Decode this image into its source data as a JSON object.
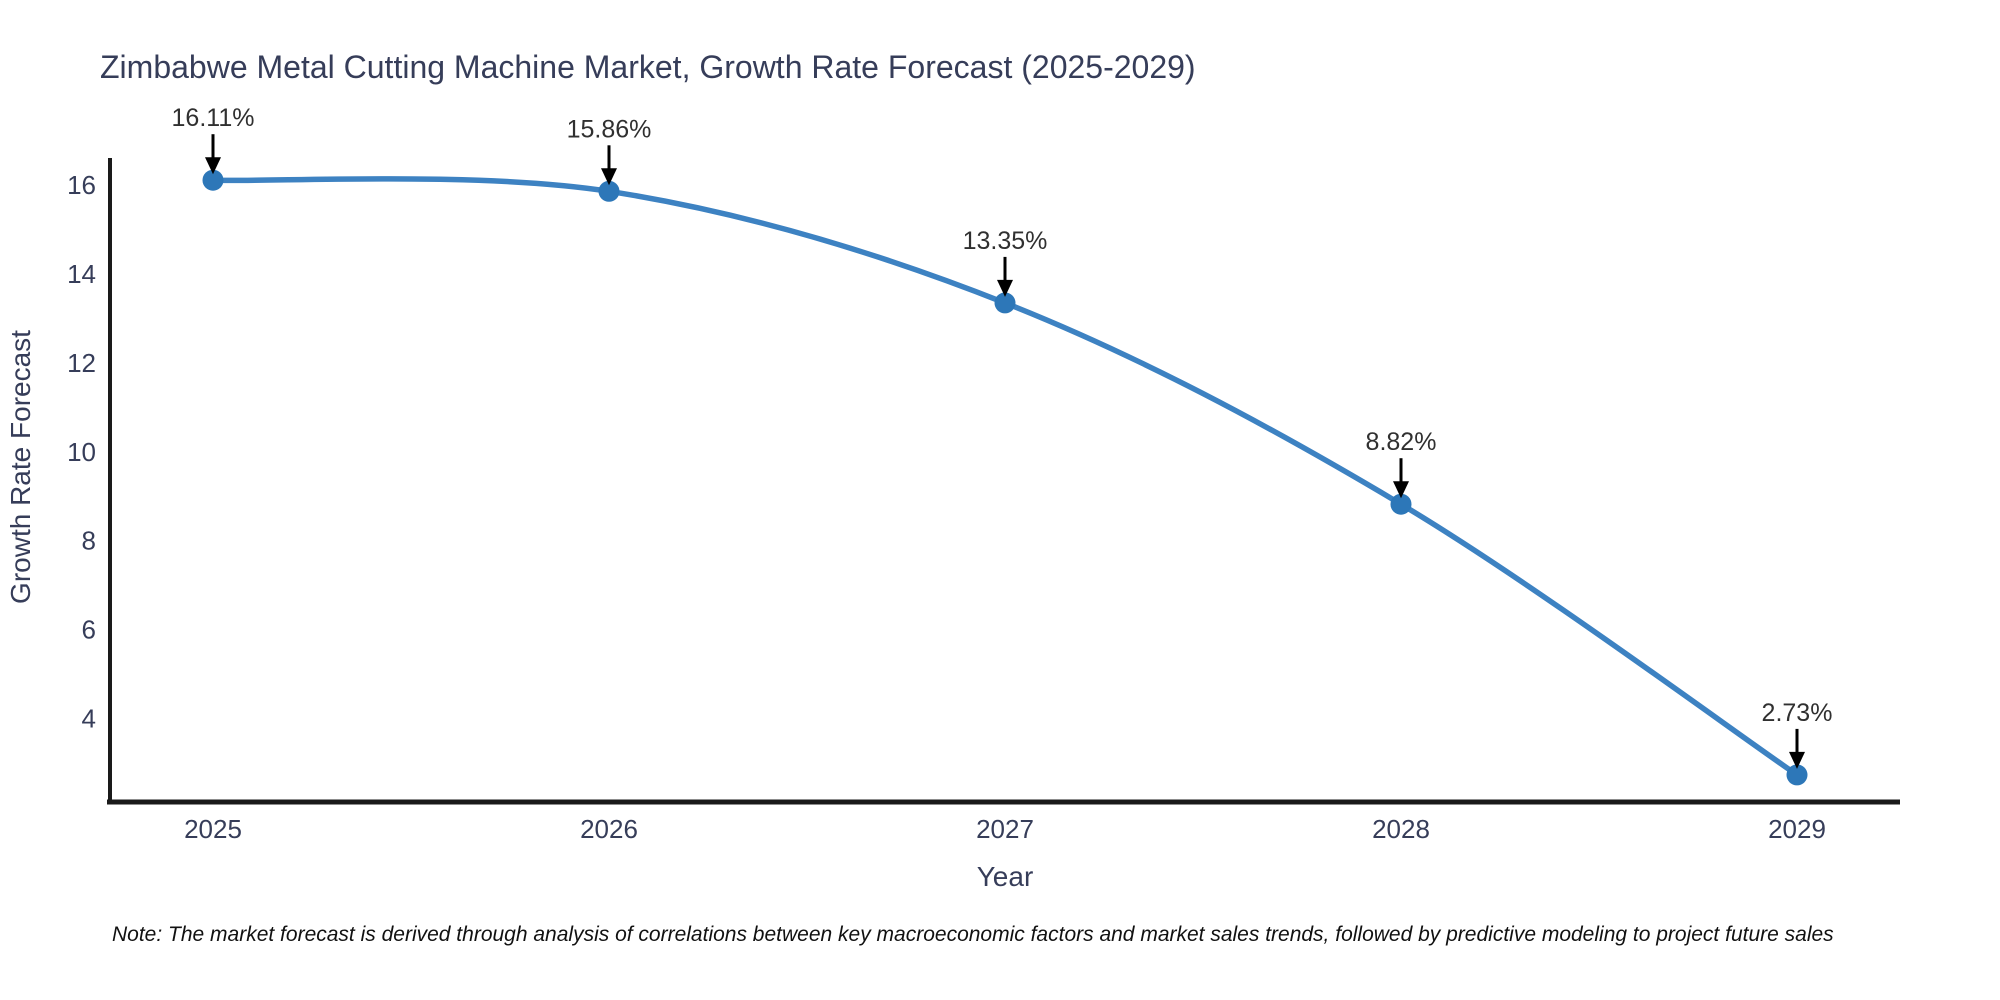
{
  "chart_data": {
    "type": "line",
    "title": "Zimbabwe Metal Cutting Machine Market, Growth Rate Forecast (2025-2029)",
    "xlabel": "Year",
    "ylabel": "Growth Rate Forecast",
    "x": [
      "2025",
      "2026",
      "2027",
      "2028",
      "2029"
    ],
    "series": [
      {
        "name": "Growth Rate Forecast",
        "values": [
          16.11,
          15.86,
          13.35,
          8.82,
          2.73
        ],
        "labels": [
          "16.11%",
          "15.86%",
          "13.35%",
          "8.82%",
          "2.73%"
        ]
      }
    ],
    "ylim": [
      2.12,
      16.61
    ],
    "yticks": [
      4,
      6,
      8,
      10,
      12,
      14,
      16
    ],
    "grid": false,
    "legend": "none",
    "line_shape": "spline",
    "marker": "circle-with-down-arrow-annotations"
  },
  "note": "Note: The market forecast is derived through analysis of correlations between key macroeconomic factors and market sales trends, followed by predictive modeling to project future sales",
  "colors": {
    "line": "#3d82c2",
    "marker": "#2d77b8",
    "axis": "#1a1a1a",
    "heading_text": "#363d59",
    "annotation_text": "#303030",
    "arrow": "#000000"
  }
}
